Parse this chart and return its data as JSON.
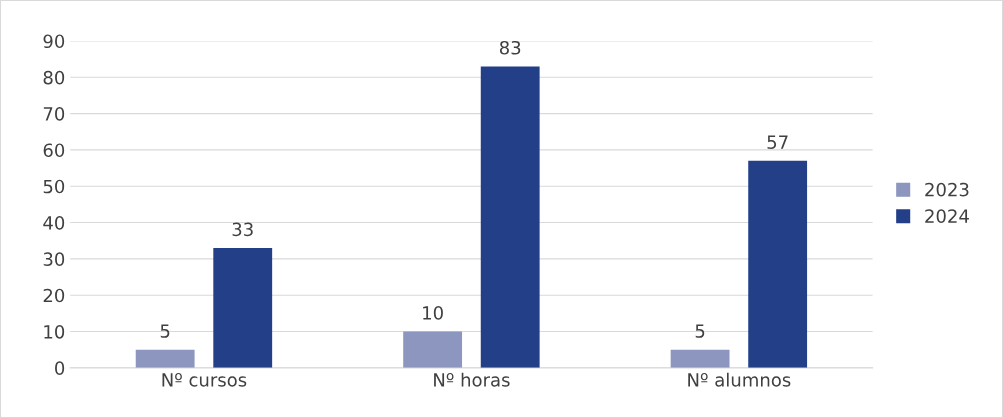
{
  "chart_data": {
    "type": "bar",
    "categories": [
      "Nº cursos",
      "Nº horas",
      "Nº alumnos"
    ],
    "series": [
      {
        "name": "2023",
        "color": "#8c96be",
        "values": [
          5,
          10,
          5
        ]
      },
      {
        "name": "2024",
        "color": "#233f88",
        "values": [
          33,
          83,
          57
        ]
      }
    ],
    "ylim": [
      0,
      90
    ],
    "yticks": [
      0,
      10,
      20,
      30,
      40,
      50,
      60,
      70,
      80,
      90
    ],
    "grid": "y",
    "legend": "right",
    "data_labels": true
  }
}
